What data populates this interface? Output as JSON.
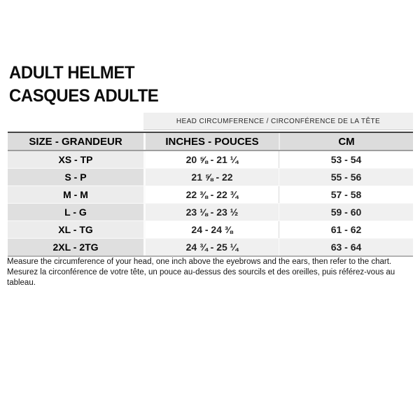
{
  "title": {
    "en": "ADULT HELMET",
    "fr": "CASQUES ADULTE"
  },
  "table": {
    "group_header": "HEAD CIRCUMFERENCE / CIRCONFÉRENCE DE LA TÊTE",
    "columns": [
      "SIZE - GRANDEUR",
      "INCHES - POUCES",
      "CM"
    ],
    "rows": [
      {
        "size": "XS - TP",
        "inches": "20 ⅝ - 21 ¼",
        "cm": "53 - 54"
      },
      {
        "size": "S - P",
        "inches": "21 ⅝ - 22",
        "cm": "55 - 56"
      },
      {
        "size": "M - M",
        "inches": "22 ⅜ - 22 ¾",
        "cm": "57 - 58"
      },
      {
        "size": "L - G",
        "inches": "23 ⅛ - 23 ½",
        "cm": "59 - 60"
      },
      {
        "size": "XL - TG",
        "inches": "24 - 24 ⅜",
        "cm": "61 - 62"
      },
      {
        "size": "2XL - 2TG",
        "inches": "24 ¾ - 25 ¼",
        "cm": "63 - 64"
      }
    ]
  },
  "notes": {
    "en": "Measure the circumference of your head, one inch above the eyebrows and the ears, then refer to the chart.",
    "fr": "Mesurez la circonférence de votre tête, un pouce au-dessus des sourcils et des oreilles, puis référez-vous au tableau."
  },
  "colors": {
    "group_header_bg": "#efefef",
    "header_bg": "#dcdcdc",
    "stripe_bg": "#f0f0f0",
    "size_col_bg": "#ececec",
    "text": "#111111"
  }
}
